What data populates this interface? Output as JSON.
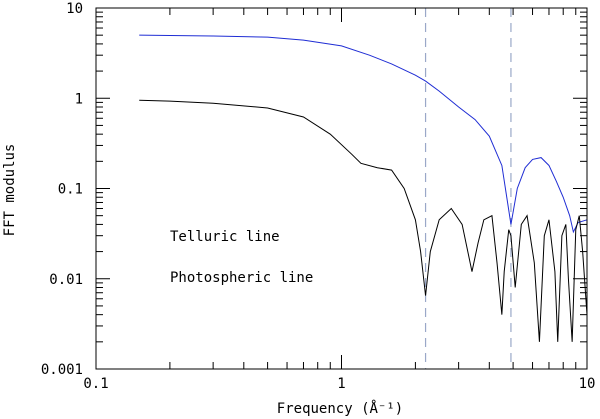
{
  "chart_data": {
    "type": "line",
    "xscale": "log",
    "yscale": "log",
    "xlim": [
      0.1,
      10
    ],
    "ylim": [
      0.001,
      10
    ],
    "xlabel": "Frequency (Å⁻¹)",
    "ylabel": "FFT modulus",
    "x_tick_labels": [
      "0.1",
      "1",
      "10"
    ],
    "y_tick_labels": [
      "0.001",
      "0.01",
      "0.1",
      "1",
      "10"
    ],
    "legend": [
      {
        "label": "Telluric line",
        "color": "#1f2dd4"
      },
      {
        "label": "Photospheric line",
        "color": "#000000"
      }
    ],
    "vertical_reference_lines": [
      2.2,
      4.9
    ],
    "reference_line_color": "#9aa8c8",
    "series": [
      {
        "color": "#1f2dd4",
        "x": [
          0.15,
          0.2,
          0.3,
          0.5,
          0.7,
          1.0,
          1.3,
          1.6,
          2.0,
          2.2,
          2.5,
          3.0,
          3.5,
          4.0,
          4.5,
          4.9,
          5.2,
          5.6,
          6.0,
          6.5,
          7.0,
          7.5,
          8.0,
          8.5,
          8.8,
          9.2,
          10.0
        ],
        "y": [
          5.0,
          4.95,
          4.9,
          4.75,
          4.4,
          3.8,
          3.0,
          2.4,
          1.8,
          1.55,
          1.2,
          0.8,
          0.58,
          0.38,
          0.18,
          0.04,
          0.1,
          0.17,
          0.21,
          0.22,
          0.18,
          0.12,
          0.08,
          0.05,
          0.033,
          0.042,
          0.045
        ]
      },
      {
        "color": "#000000",
        "x": [
          0.15,
          0.2,
          0.3,
          0.5,
          0.7,
          0.9,
          1.1,
          1.2,
          1.4,
          1.6,
          1.8,
          2.0,
          2.1,
          2.2,
          2.3,
          2.5,
          2.8,
          3.1,
          3.4,
          3.6,
          3.8,
          4.1,
          4.3,
          4.5,
          4.6,
          4.8,
          4.9,
          5.1,
          5.4,
          5.7,
          6.1,
          6.4,
          6.7,
          7.0,
          7.4,
          7.6,
          7.9,
          8.2,
          8.4,
          8.7,
          9.0,
          9.3,
          9.6,
          10.0
        ],
        "y": [
          0.95,
          0.93,
          0.88,
          0.78,
          0.62,
          0.4,
          0.24,
          0.19,
          0.17,
          0.16,
          0.1,
          0.045,
          0.02,
          0.0065,
          0.02,
          0.045,
          0.06,
          0.04,
          0.012,
          0.025,
          0.045,
          0.05,
          0.015,
          0.004,
          0.012,
          0.035,
          0.03,
          0.008,
          0.04,
          0.05,
          0.015,
          0.002,
          0.03,
          0.045,
          0.012,
          0.002,
          0.03,
          0.04,
          0.01,
          0.002,
          0.035,
          0.05,
          0.02,
          0.004
        ]
      }
    ],
    "grid": false
  }
}
